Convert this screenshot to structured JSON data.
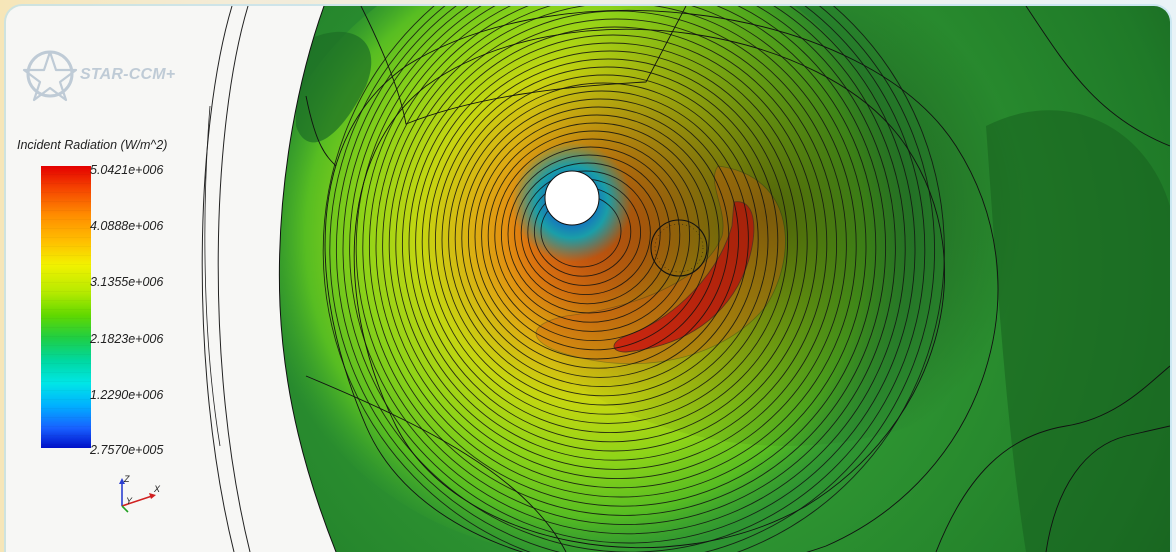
{
  "app": {
    "logo_text": "STAR-CCM+"
  },
  "legend": {
    "title": "Incident Radiation (W/m^2)",
    "labels": [
      "5.0421e+006",
      "4.0888e+006",
      "3.1355e+006",
      "2.1823e+006",
      "1.2290e+006",
      "2.7570e+005"
    ]
  },
  "triad": {
    "x": "X",
    "y": "Y",
    "z": "Z"
  },
  "colors": {
    "max": "#e40000",
    "min": "#0010c8",
    "field_background": "#2e8a30"
  }
}
